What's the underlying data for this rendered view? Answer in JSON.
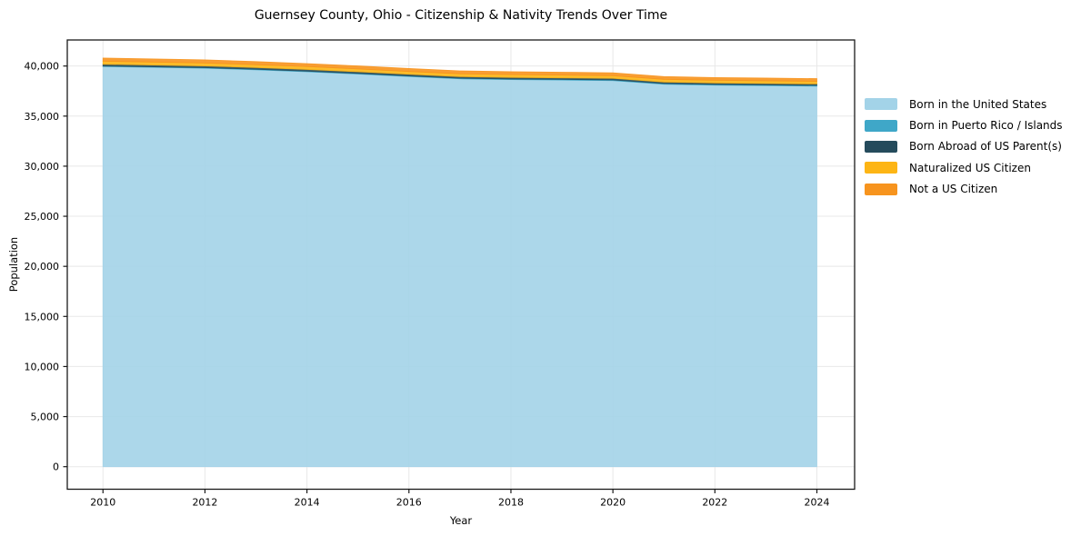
{
  "chart_data": {
    "type": "area",
    "stacked": true,
    "title": "Guernsey County, Ohio - Citizenship & Nativity Trends Over Time",
    "xlabel": "Year",
    "ylabel": "Population",
    "x": [
      2010,
      2011,
      2012,
      2013,
      2014,
      2015,
      2016,
      2017,
      2018,
      2019,
      2020,
      2021,
      2022,
      2023,
      2024
    ],
    "series": [
      {
        "name": "Born in the United States",
        "color": "#A3D3E8",
        "values": [
          39950,
          39870,
          39780,
          39620,
          39430,
          39200,
          38950,
          38720,
          38640,
          38600,
          38540,
          38180,
          38090,
          38040,
          37990
        ]
      },
      {
        "name": "Born in Puerto Rico / Islands",
        "color": "#3FA7C8",
        "values": [
          50,
          50,
          55,
          55,
          60,
          60,
          60,
          65,
          65,
          65,
          70,
          70,
          70,
          75,
          75
        ]
      },
      {
        "name": "Born Abroad of US Parent(s)",
        "color": "#254B5C",
        "values": [
          180,
          175,
          175,
          170,
          170,
          165,
          165,
          160,
          160,
          155,
          155,
          150,
          150,
          145,
          145
        ]
      },
      {
        "name": "Naturalized US Citizen",
        "color": "#FDB515",
        "values": [
          300,
          295,
          290,
          290,
          285,
          285,
          280,
          280,
          275,
          275,
          270,
          270,
          265,
          265,
          260
        ]
      },
      {
        "name": "Not a US Citizen",
        "color": "#F7941E",
        "values": [
          320,
          315,
          310,
          305,
          300,
          300,
          295,
          290,
          290,
          285,
          285,
          280,
          275,
          270,
          270
        ]
      }
    ],
    "xticks": [
      2010,
      2012,
      2014,
      2016,
      2018,
      2020,
      2022,
      2024
    ],
    "yticks": [
      0,
      5000,
      10000,
      15000,
      20000,
      25000,
      30000,
      35000,
      40000
    ],
    "ytick_labels": [
      "0",
      "5,000",
      "10,000",
      "15,000",
      "20,000",
      "25,000",
      "30,000",
      "35,000",
      "40,000"
    ],
    "xlim": [
      2009.3,
      2024.74
    ],
    "ylim": [
      -2250,
      42600
    ],
    "grid": true,
    "grid_color": "#E8E8E8",
    "frame_color": "#1a1a1a",
    "legend_position": "right-outside"
  }
}
